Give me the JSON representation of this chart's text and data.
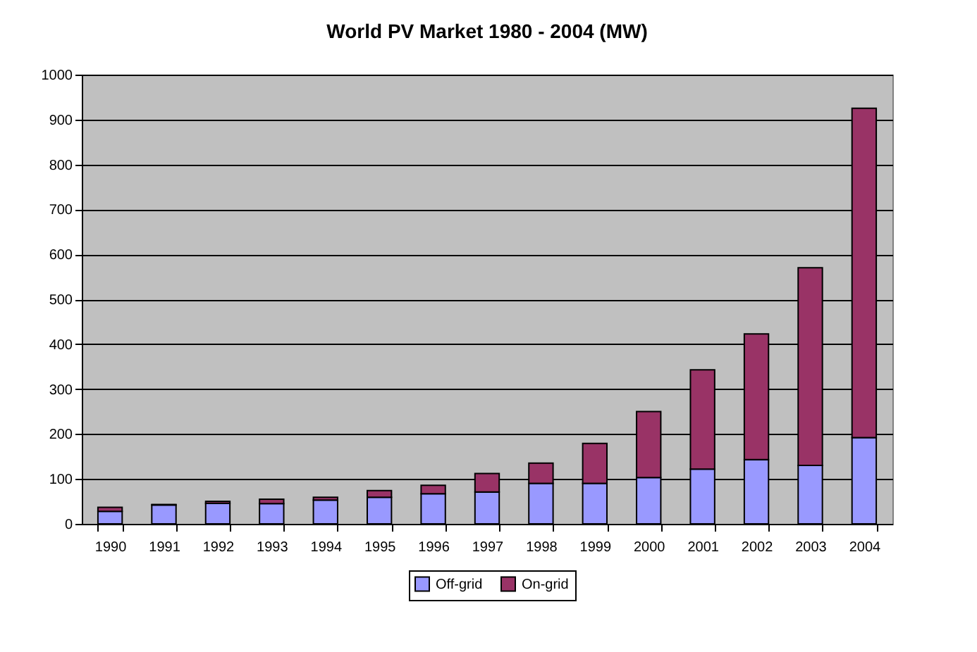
{
  "chart_data": {
    "type": "bar",
    "title": "World PV Market 1980 - 2004 (MW)",
    "stacked": true,
    "categories": [
      "1990",
      "1991",
      "1992",
      "1993",
      "1994",
      "1995",
      "1996",
      "1997",
      "1998",
      "1999",
      "2000",
      "2001",
      "2002",
      "2003",
      "2004"
    ],
    "series": [
      {
        "name": "Off-grid",
        "color": "#9999ff",
        "values": [
          28,
          42,
          46,
          45,
          53,
          59,
          67,
          71,
          90,
          90,
          103,
          122,
          143,
          130,
          192
        ]
      },
      {
        "name": "On-grid",
        "color": "#993366",
        "values": [
          9,
          1,
          4,
          10,
          6,
          15,
          19,
          41,
          45,
          89,
          147,
          221,
          280,
          440,
          733
        ]
      }
    ],
    "ylim": [
      0,
      1000
    ],
    "yticks": [
      0,
      100,
      200,
      300,
      400,
      500,
      600,
      700,
      800,
      900,
      1000
    ],
    "grid": "y",
    "legend": "bottom"
  }
}
